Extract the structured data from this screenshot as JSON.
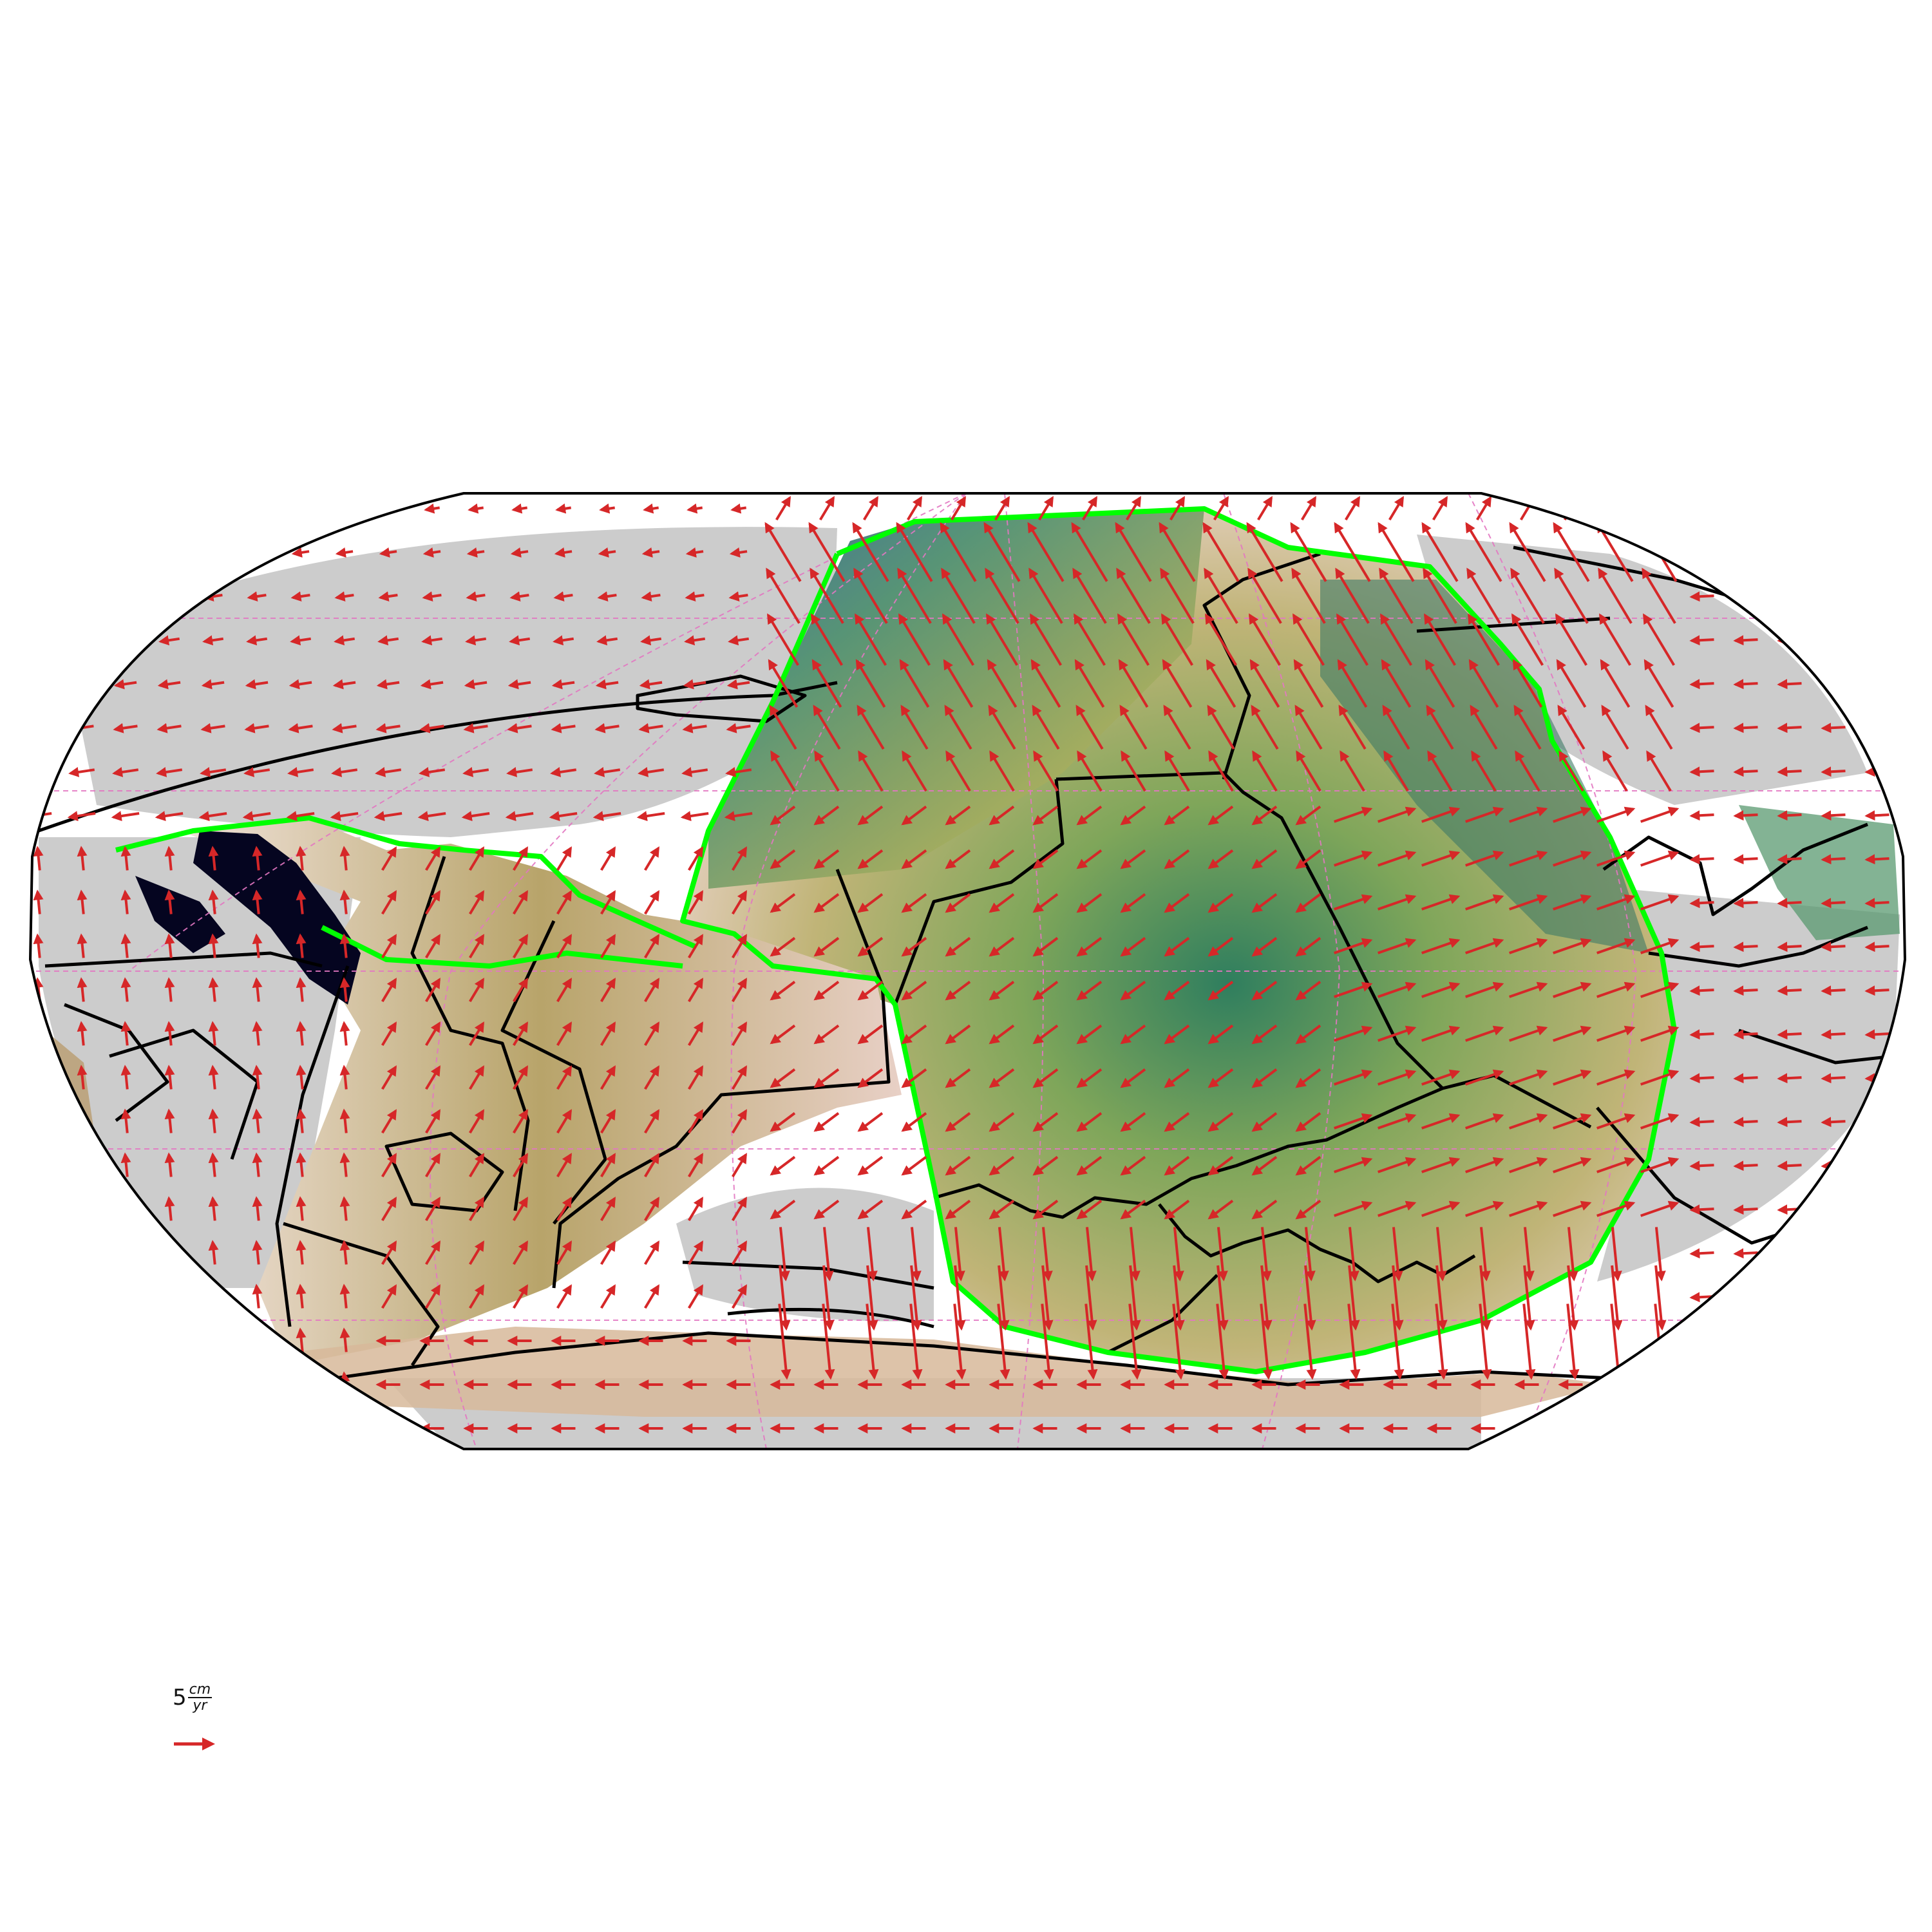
{
  "map": {
    "projection": "Robinson",
    "colors": {
      "ocean_fill": "#ffffff",
      "continent": "#cccccc",
      "plate_boundary": "#000000",
      "highlighted_boundary": "#00ff00",
      "velocity_arrow": "#d62728",
      "graticule": "#e377c2",
      "seafloor_young": "#f5e6dc",
      "seafloor_mid": "#b8b46a",
      "seafloor_old": "#4a8f5a",
      "seafloor_oldest": "#1f4e8c",
      "deep_anomaly": "#050520"
    },
    "graticule": "dashed"
  },
  "legend": {
    "value": "5",
    "unit_numerator": "cm",
    "unit_denominator": "yr",
    "arrow_icon": "velocity-arrow-icon"
  }
}
